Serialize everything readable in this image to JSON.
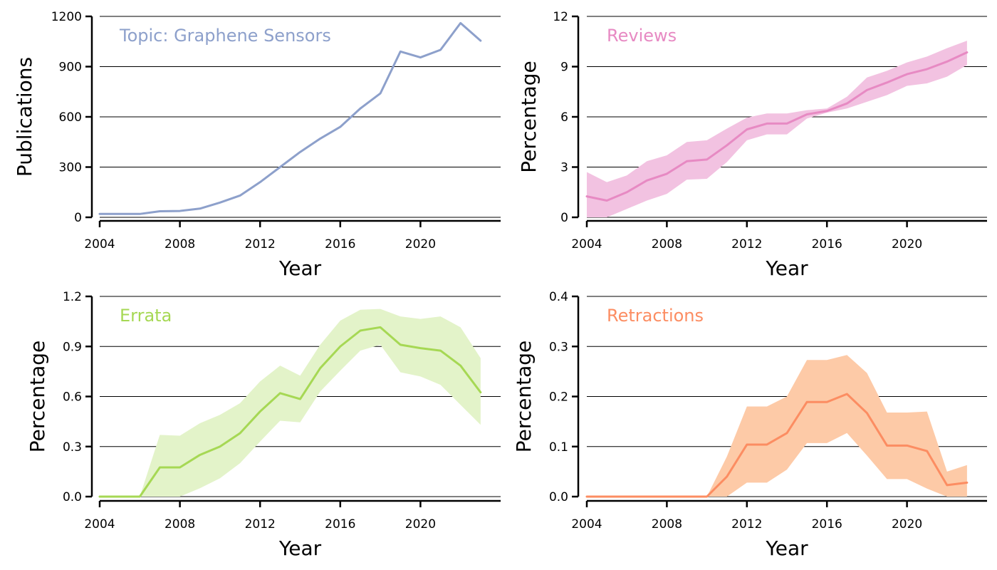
{
  "chart_data": [
    {
      "type": "line",
      "label": "Topic: Graphene Sensors",
      "color": "#8da0cb",
      "band_color": null,
      "xlabel": "Year",
      "ylabel": "Publications",
      "xlim": [
        2004,
        2024
      ],
      "ylim": [
        0,
        1200
      ],
      "xticks": [
        2004,
        2008,
        2012,
        2016,
        2020
      ],
      "yticks": [
        0,
        300,
        600,
        900,
        1200
      ],
      "ytick_labels": [
        "0",
        "300",
        "600",
        "900",
        "1200"
      ],
      "grid": "horizontal",
      "x": [
        2004,
        2005,
        2006,
        2007,
        2008,
        2009,
        2010,
        2011,
        2012,
        2013,
        2014,
        2015,
        2016,
        2017,
        2018,
        2019,
        2020,
        2021,
        2022,
        2023
      ],
      "values": [
        20,
        20,
        20,
        36,
        38,
        52,
        88,
        130,
        210,
        300,
        390,
        470,
        540,
        650,
        740,
        990,
        955,
        1000,
        1160,
        1055
      ]
    },
    {
      "type": "line",
      "label": "Reviews",
      "color": "#e78ac3",
      "band_color": "#f2c2e1",
      "xlabel": "Year",
      "ylabel": "Percentage",
      "xlim": [
        2004,
        2024
      ],
      "ylim": [
        0,
        12
      ],
      "xticks": [
        2004,
        2008,
        2012,
        2016,
        2020
      ],
      "yticks": [
        0,
        3,
        6,
        9,
        12
      ],
      "ytick_labels": [
        "0",
        "3",
        "6",
        "9",
        "12"
      ],
      "grid": "horizontal",
      "x": [
        2004,
        2005,
        2006,
        2007,
        2008,
        2009,
        2010,
        2011,
        2012,
        2013,
        2014,
        2015,
        2016,
        2017,
        2018,
        2019,
        2020,
        2021,
        2022,
        2023
      ],
      "values": [
        1.25,
        1.0,
        1.5,
        2.2,
        2.6,
        3.35,
        3.45,
        4.3,
        5.25,
        5.6,
        5.6,
        6.15,
        6.35,
        6.8,
        7.6,
        8.05,
        8.55,
        8.85,
        9.3,
        9.85
      ],
      "lower": [
        0.0,
        0.0,
        0.5,
        1.0,
        1.4,
        2.25,
        2.3,
        3.3,
        4.6,
        4.95,
        4.95,
        5.9,
        6.25,
        6.5,
        6.9,
        7.3,
        7.85,
        8.0,
        8.4,
        9.1
      ],
      "upper": [
        2.7,
        2.1,
        2.5,
        3.35,
        3.7,
        4.5,
        4.6,
        5.3,
        5.95,
        6.2,
        6.2,
        6.4,
        6.5,
        7.2,
        8.35,
        8.75,
        9.25,
        9.6,
        10.1,
        10.55
      ]
    },
    {
      "type": "line",
      "label": "Errata",
      "color": "#a6d854",
      "band_color": "#e3f3c9",
      "xlabel": "Year",
      "ylabel": "Percentage",
      "xlim": [
        2004,
        2024
      ],
      "ylim": [
        0,
        1.2
      ],
      "xticks": [
        2004,
        2008,
        2012,
        2016,
        2020
      ],
      "yticks": [
        0,
        0.3,
        0.6,
        0.9,
        1.2
      ],
      "ytick_labels": [
        "0.0",
        "0.3",
        "0.6",
        "0.9",
        "1.2"
      ],
      "grid": "horizontal",
      "x": [
        2004,
        2005,
        2006,
        2007,
        2008,
        2009,
        2010,
        2011,
        2012,
        2013,
        2014,
        2015,
        2016,
        2017,
        2018,
        2019,
        2020,
        2021,
        2022,
        2023
      ],
      "values": [
        0.0,
        0.0,
        0.0,
        0.175,
        0.175,
        0.25,
        0.3,
        0.38,
        0.51,
        0.62,
        0.585,
        0.77,
        0.9,
        0.995,
        1.015,
        0.91,
        0.89,
        0.875,
        0.785,
        0.625
      ],
      "lower": [
        0.0,
        0.0,
        0.0,
        0.0,
        0.0,
        0.05,
        0.11,
        0.2,
        0.33,
        0.455,
        0.445,
        0.63,
        0.755,
        0.875,
        0.91,
        0.745,
        0.72,
        0.67,
        0.55,
        0.43
      ],
      "upper": [
        0.0,
        0.0,
        0.0,
        0.37,
        0.365,
        0.44,
        0.49,
        0.56,
        0.69,
        0.785,
        0.725,
        0.91,
        1.055,
        1.12,
        1.125,
        1.08,
        1.065,
        1.08,
        1.015,
        0.83
      ]
    },
    {
      "type": "line",
      "label": "Retractions",
      "color": "#fc8d62",
      "band_color": "#fdcaa7",
      "xlabel": "Year",
      "ylabel": "Percentage",
      "xlim": [
        2004,
        2024
      ],
      "ylim": [
        0,
        0.4
      ],
      "xticks": [
        2004,
        2008,
        2012,
        2016,
        2020
      ],
      "yticks": [
        0,
        0.1,
        0.2,
        0.3,
        0.4
      ],
      "ytick_labels": [
        "0.0",
        "0.1",
        "0.2",
        "0.3",
        "0.4"
      ],
      "grid": "horizontal",
      "x": [
        2004,
        2005,
        2006,
        2007,
        2008,
        2009,
        2010,
        2011,
        2012,
        2013,
        2014,
        2015,
        2016,
        2017,
        2018,
        2019,
        2020,
        2021,
        2022,
        2023
      ],
      "values": [
        0.0,
        0.0,
        0.0,
        0.0,
        0.0,
        0.0,
        0.0,
        0.04,
        0.104,
        0.104,
        0.127,
        0.189,
        0.189,
        0.205,
        0.167,
        0.102,
        0.102,
        0.091,
        0.023,
        0.028
      ],
      "lower": [
        0.0,
        0.0,
        0.0,
        0.0,
        0.0,
        0.0,
        0.0,
        0.0,
        0.028,
        0.028,
        0.054,
        0.107,
        0.107,
        0.127,
        0.082,
        0.035,
        0.035,
        0.016,
        0.0,
        0.0
      ],
      "upper": [
        0.0,
        0.0,
        0.0,
        0.0,
        0.0,
        0.0,
        0.0,
        0.08,
        0.18,
        0.18,
        0.2,
        0.273,
        0.273,
        0.283,
        0.247,
        0.168,
        0.168,
        0.17,
        0.05,
        0.063
      ]
    }
  ]
}
